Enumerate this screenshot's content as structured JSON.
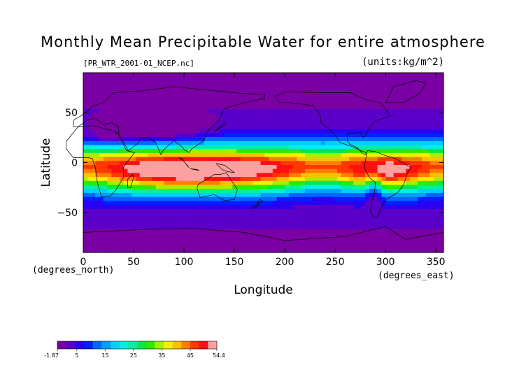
{
  "chart_data": {
    "type": "heatmap",
    "title": "Monthly Mean Precipitable Water for entire atmosphere",
    "subtitle_left": "[PR_WTR_2001-01_NCEP.nc]",
    "subtitle_right": "(units:kg/m^2)",
    "xlabel": "Longitude",
    "ylabel": "Latitude",
    "x_unit_label": "(degrees_east)",
    "y_unit_label": "(degrees_north)",
    "xlim": [
      0,
      357.5
    ],
    "ylim": [
      -90,
      90
    ],
    "x_ticks": [
      0,
      50,
      100,
      150,
      200,
      250,
      300,
      350
    ],
    "x_tick_labels": [
      "0",
      "50",
      "100",
      "150",
      "200",
      "250",
      "300",
      "350"
    ],
    "y_ticks": [
      -50,
      0,
      50
    ],
    "y_tick_labels": [
      "−50",
      "0",
      "50"
    ],
    "colorbar": {
      "min": -1.87,
      "max": 54.4,
      "tick_labels": [
        "-1.87",
        "5",
        "15",
        "25",
        "35",
        "45",
        "54.4"
      ],
      "tick_values": [
        -1.87,
        5,
        15,
        25,
        35,
        45,
        54.4
      ]
    },
    "colors": {
      "levels": [
        "#7a00a5",
        "#5a00c8",
        "#2a00f0",
        "#0020ff",
        "#0068ff",
        "#00a0ff",
        "#00d0ff",
        "#00f0e0",
        "#00f0a0",
        "#00e850",
        "#30e800",
        "#a0f000",
        "#f0f000",
        "#ffc000",
        "#ff8000",
        "#ff3800",
        "#ff1010",
        "#ffa0a0"
      ]
    }
  }
}
